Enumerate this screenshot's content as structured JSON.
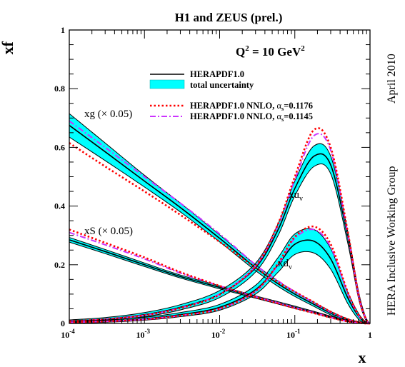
{
  "chart_data": {
    "type": "line",
    "title": "H1 and ZEUS (prel.)",
    "xlabel": "x",
    "ylabel": "xf",
    "xscale": "log",
    "xlim": [
      0.0001,
      1
    ],
    "ylim": [
      0,
      1
    ],
    "x_ticks": [
      {
        "base": "10",
        "exp": "-4"
      },
      {
        "base": "10",
        "exp": "-3"
      },
      {
        "base": "10",
        "exp": "-2"
      },
      {
        "base": "10",
        "exp": "-1"
      },
      {
        "base": "1",
        "exp": ""
      }
    ],
    "y_ticks": [
      "0",
      "0.2",
      "0.4",
      "0.6",
      "0.8",
      "1"
    ],
    "scale_label": {
      "main": "Q",
      "sup": "2",
      "rest": " = 10 GeV",
      "sup2": "2"
    },
    "side_texts": [
      "April 2010",
      "HERA Inclusive Working Group"
    ],
    "legend": {
      "central": "HERAPDF1.0",
      "band": "total uncertainty",
      "nnlo1": {
        "text": "HERAPDF1.0 NNLO, ",
        "alpha": "α",
        "sub": "s",
        "val": "=0.1176"
      },
      "nnlo2": {
        "text": "HERAPDF1.0 NNLO, ",
        "alpha": "α",
        "sub": "s",
        "val": "=0.1145"
      }
    },
    "colors": {
      "band": "#00ffff",
      "central": "#000000",
      "nnlo1": "#ff0000",
      "nnlo2": "#cc33ff"
    },
    "annotations": [
      {
        "id": "xg",
        "text": "xg (× 0.05)",
        "sub": ""
      },
      {
        "id": "xS",
        "text": "xS (× 0.05)",
        "sub": ""
      },
      {
        "id": "xuv",
        "text": "xu",
        "sub": "v"
      },
      {
        "id": "xdv",
        "text": "xd",
        "sub": "v"
      }
    ],
    "x_samples": [
      0.0001,
      0.0003,
      0.001,
      0.003,
      0.01,
      0.03,
      0.06,
      0.1,
      0.18,
      0.3,
      0.5,
      0.7,
      0.85,
      0.95,
      1.0
    ],
    "series": [
      {
        "id": "xg",
        "central": [
          0.675,
          0.585,
          0.485,
          0.395,
          0.29,
          0.19,
          0.135,
          0.1,
          0.065,
          0.035,
          0.012,
          0.004,
          0.001,
          0.0,
          0.0
        ],
        "unc": [
          0.04,
          0.03,
          0.02,
          0.015,
          0.012,
          0.01,
          0.009,
          0.008,
          0.007,
          0.006,
          0.004,
          0.002,
          0.001,
          0.0,
          0.0
        ],
        "nnlo1": [
          0.615,
          0.535,
          0.45,
          0.37,
          0.278,
          0.19,
          0.14,
          0.108,
          0.072,
          0.04,
          0.015,
          0.005,
          0.001,
          0.0,
          0.0
        ],
        "nnlo2": [
          0.69,
          0.6,
          0.5,
          0.41,
          0.305,
          0.2,
          0.145,
          0.108,
          0.07,
          0.038,
          0.013,
          0.004,
          0.001,
          0.0,
          0.0
        ]
      },
      {
        "id": "xS",
        "central": [
          0.285,
          0.245,
          0.2,
          0.16,
          0.123,
          0.09,
          0.07,
          0.055,
          0.038,
          0.022,
          0.008,
          0.002,
          0.0,
          0.0,
          0.0
        ],
        "unc": [
          0.008,
          0.007,
          0.006,
          0.005,
          0.005,
          0.004,
          0.004,
          0.004,
          0.003,
          0.003,
          0.002,
          0.001,
          0.0,
          0.0,
          0.0
        ],
        "nnlo1": [
          0.32,
          0.275,
          0.225,
          0.175,
          0.128,
          0.09,
          0.068,
          0.052,
          0.035,
          0.02,
          0.007,
          0.002,
          0.0,
          0.0,
          0.0
        ],
        "nnlo2": [
          0.31,
          0.268,
          0.22,
          0.172,
          0.128,
          0.091,
          0.07,
          0.054,
          0.037,
          0.021,
          0.007,
          0.002,
          0.0,
          0.0,
          0.0
        ]
      },
      {
        "id": "xuv",
        "central": [
          0.008,
          0.015,
          0.03,
          0.055,
          0.1,
          0.19,
          0.32,
          0.46,
          0.57,
          0.54,
          0.3,
          0.1,
          0.025,
          0.004,
          0.0
        ],
        "unc": [
          0.004,
          0.005,
          0.007,
          0.009,
          0.012,
          0.015,
          0.02,
          0.025,
          0.035,
          0.03,
          0.02,
          0.012,
          0.006,
          0.002,
          0.0
        ],
        "nnlo1": [
          0.008,
          0.014,
          0.028,
          0.052,
          0.098,
          0.195,
          0.34,
          0.5,
          0.66,
          0.6,
          0.32,
          0.1,
          0.025,
          0.003,
          0.0
        ],
        "nnlo2": [
          0.008,
          0.014,
          0.028,
          0.053,
          0.1,
          0.195,
          0.335,
          0.49,
          0.64,
          0.59,
          0.31,
          0.1,
          0.025,
          0.003,
          0.0
        ]
      },
      {
        "id": "xdv",
        "central": [
          0.004,
          0.008,
          0.016,
          0.03,
          0.055,
          0.115,
          0.2,
          0.27,
          0.28,
          0.22,
          0.09,
          0.025,
          0.005,
          0.001,
          0.0
        ],
        "unc": [
          0.003,
          0.004,
          0.005,
          0.007,
          0.01,
          0.015,
          0.025,
          0.035,
          0.04,
          0.035,
          0.02,
          0.01,
          0.004,
          0.001,
          0.0
        ],
        "nnlo1": [
          0.004,
          0.007,
          0.014,
          0.027,
          0.05,
          0.11,
          0.205,
          0.295,
          0.33,
          0.27,
          0.11,
          0.03,
          0.006,
          0.001,
          0.0
        ],
        "nnlo2": [
          0.004,
          0.007,
          0.014,
          0.027,
          0.05,
          0.11,
          0.2,
          0.29,
          0.32,
          0.26,
          0.105,
          0.028,
          0.006,
          0.001,
          0.0
        ]
      }
    ]
  }
}
